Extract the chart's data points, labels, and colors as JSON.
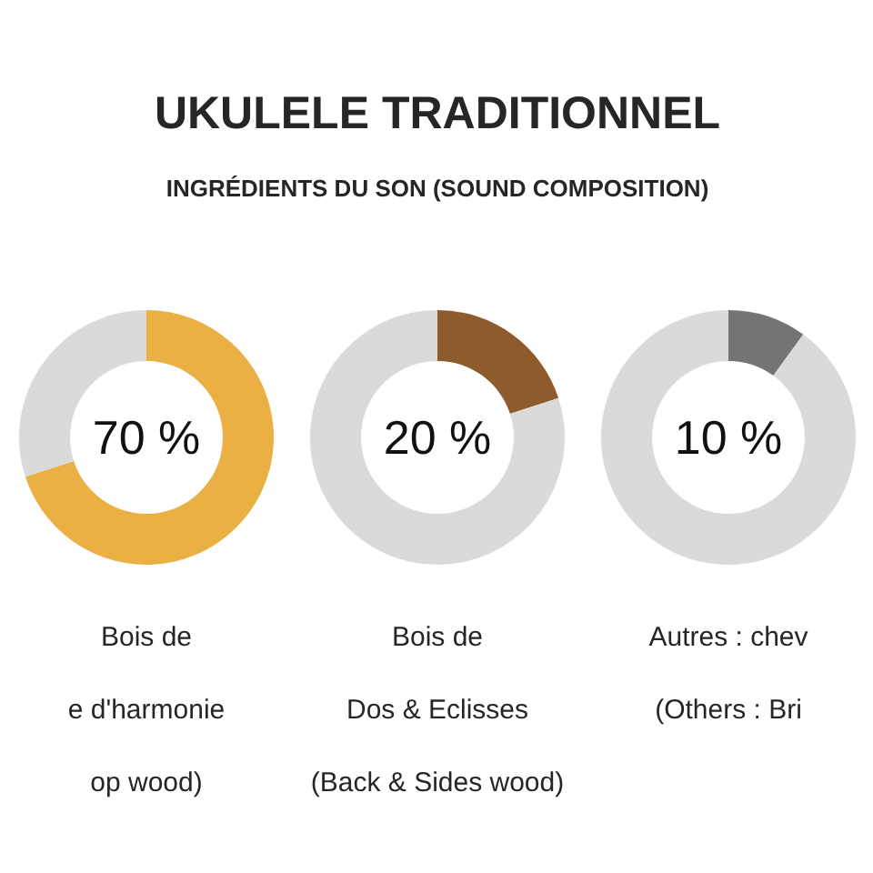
{
  "chart_data": [
    {
      "type": "other",
      "title": "UKULELE TRADITIONNEL",
      "subtitle": "INGRÉDIENTS DU SON (SOUND COMPOSITION)"
    },
    {
      "type": "donut",
      "categories": [
        "Bois de\ne d'harmonie\nop wood)",
        null
      ],
      "values": [
        70,
        30
      ],
      "colors": [
        "#ebb043",
        "#dadada"
      ],
      "annotations": [
        "70 %"
      ]
    },
    {
      "type": "donut",
      "categories": [
        "Bois de\nDos & Eclisses\n(Back & Sides wood)",
        null
      ],
      "values": [
        20,
        80
      ],
      "colors": [
        "#8e5b2c",
        "#dadada"
      ],
      "annotations": [
        "20 %"
      ]
    },
    {
      "type": "donut",
      "categories": [
        "Autres : chev\n(Others : Bri",
        null
      ],
      "values": [
        10,
        90
      ],
      "colors": [
        "#747474",
        "#dadada"
      ],
      "annotations": [
        "10 %"
      ]
    }
  ]
}
